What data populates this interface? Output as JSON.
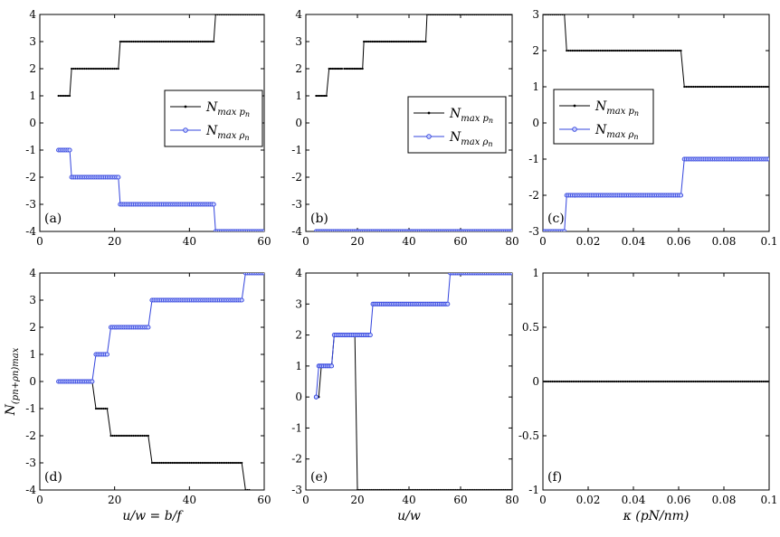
{
  "chart_data": [
    {
      "id": "a",
      "type": "line",
      "label": "(a)",
      "xlim": [
        0,
        60
      ],
      "ylim": [
        -4,
        4
      ],
      "xticks": [
        "0",
        "20",
        "40",
        "60"
      ],
      "yticks": [
        "-4",
        "-3",
        "-2",
        "-1",
        "0",
        "1",
        "2",
        "3",
        "4"
      ],
      "xlabel": "",
      "ylabel": "",
      "legend": {
        "position": "middle-right",
        "entries": [
          "N_max p_n",
          "N_max ρ_n"
        ]
      },
      "series": [
        {
          "name": "N_max p_n",
          "color": "#000000",
          "marker": "dot",
          "steps": [
            [
              5,
              8,
              1
            ],
            [
              8.5,
              21,
              2
            ],
            [
              21.5,
              46.5,
              3
            ],
            [
              47,
              60,
              4
            ]
          ]
        },
        {
          "name": "N_max ρ_n",
          "color": "#3344dd",
          "marker": "circle",
          "steps": [
            [
              5,
              8,
              -1
            ],
            [
              8.5,
              21,
              -2
            ],
            [
              21.5,
              46.5,
              -3
            ],
            [
              47,
              60,
              -4
            ]
          ]
        }
      ]
    },
    {
      "id": "b",
      "type": "line",
      "label": "(b)",
      "xlim": [
        0,
        80
      ],
      "ylim": [
        -4,
        4
      ],
      "xticks": [
        "0",
        "20",
        "40",
        "60",
        "80"
      ],
      "yticks": [
        "-4",
        "-3",
        "-2",
        "-1",
        "0",
        "1",
        "2",
        "3",
        "4"
      ],
      "xlabel": "",
      "ylabel": "",
      "legend": {
        "position": "middle-right",
        "entries": [
          "N_max p_n",
          "N_max ρ_n"
        ]
      },
      "series": [
        {
          "name": "N_max p_n",
          "color": "#000000",
          "marker": "dot",
          "steps": [
            [
              4,
              8,
              1
            ],
            [
              9,
              14,
              2
            ],
            [
              15,
              22,
              2
            ],
            [
              22.5,
              46.5,
              3
            ],
            [
              47,
              80,
              4
            ]
          ]
        },
        {
          "name": "N_max ρ_n",
          "color": "#3344dd",
          "marker": "circle",
          "steps": [
            [
              4,
              80,
              -4
            ]
          ]
        }
      ]
    },
    {
      "id": "c",
      "type": "line",
      "label": "(c)",
      "xlim": [
        0,
        0.1
      ],
      "ylim": [
        -3,
        3
      ],
      "xticks": [
        "0",
        "0.02",
        "0.04",
        "0.06",
        "0.08",
        "0.1"
      ],
      "yticks": [
        "-3",
        "-2",
        "-1",
        "0",
        "1",
        "2",
        "3"
      ],
      "xlabel": "",
      "ylabel": "",
      "legend": {
        "position": "middle-left",
        "entries": [
          "N_max p_n",
          "N_max ρ_n"
        ]
      },
      "series": [
        {
          "name": "N_max p_n",
          "color": "#000000",
          "marker": "dot",
          "steps": [
            [
              0,
              0.0095,
              3
            ],
            [
              0.0105,
              0.061,
              2
            ],
            [
              0.0625,
              0.1,
              1
            ]
          ]
        },
        {
          "name": "N_max ρ_n",
          "color": "#3344dd",
          "marker": "circle",
          "steps": [
            [
              0,
              0.0095,
              -3
            ],
            [
              0.0105,
              0.061,
              -2
            ],
            [
              0.0625,
              0.1,
              -1
            ]
          ]
        }
      ]
    },
    {
      "id": "d",
      "type": "line",
      "label": "(d)",
      "xlim": [
        0,
        60
      ],
      "ylim": [
        -4,
        4
      ],
      "xticks": [
        "0",
        "20",
        "40",
        "60"
      ],
      "yticks": [
        "-4",
        "-3",
        "-2",
        "-1",
        "0",
        "1",
        "2",
        "3",
        "4"
      ],
      "xlabel": "u/w = b/f",
      "ylabel": "N_(p_n+ρ_n)max",
      "series": [
        {
          "name": "black",
          "color": "#000000",
          "marker": "dot",
          "steps": [
            [
              5,
              14,
              0
            ],
            [
              15,
              18,
              -1
            ],
            [
              19,
              29,
              -2
            ],
            [
              30,
              54,
              -3
            ],
            [
              55,
              56,
              -4
            ]
          ]
        },
        {
          "name": "blue",
          "color": "#3344dd",
          "marker": "circle",
          "steps": [
            [
              5,
              14,
              0
            ],
            [
              15,
              18,
              1
            ],
            [
              19,
              29,
              2
            ],
            [
              30,
              54,
              3
            ],
            [
              55,
              60,
              4
            ]
          ]
        }
      ]
    },
    {
      "id": "e",
      "type": "line",
      "label": "(e)",
      "xlim": [
        0,
        80
      ],
      "ylim": [
        -3,
        4
      ],
      "xticks": [
        "0",
        "20",
        "40",
        "60",
        "80"
      ],
      "yticks": [
        "-3",
        "-2",
        "-1",
        "0",
        "1",
        "2",
        "3",
        "4"
      ],
      "xlabel": "u/w",
      "ylabel": "",
      "series": [
        {
          "name": "black",
          "color": "#000000",
          "marker": "dot",
          "steps": [
            [
              5,
              5,
              0
            ],
            [
              6,
              10,
              1
            ],
            [
              11,
              19,
              2
            ],
            [
              20,
              80,
              -3
            ]
          ]
        },
        {
          "name": "blue",
          "color": "#3344dd",
          "marker": "circle",
          "steps": [
            [
              4,
              4,
              0
            ],
            [
              5,
              10,
              1
            ],
            [
              11,
              25,
              2
            ],
            [
              26,
              55,
              3
            ],
            [
              56,
              80,
              4
            ]
          ]
        }
      ]
    },
    {
      "id": "f",
      "type": "line",
      "label": "(f)",
      "xlim": [
        0,
        0.1
      ],
      "ylim": [
        -1,
        1
      ],
      "xticks": [
        "0",
        "0.02",
        "0.04",
        "0.06",
        "0.08",
        "0.1"
      ],
      "yticks": [
        "-1",
        "-0.5",
        "0",
        "0.5",
        "1"
      ],
      "xlabel": "κ (pN/nm)",
      "ylabel": "",
      "series": [
        {
          "name": "black",
          "color": "#000000",
          "marker": "dot",
          "steps": [
            [
              0,
              0.1,
              0
            ]
          ]
        }
      ]
    }
  ]
}
